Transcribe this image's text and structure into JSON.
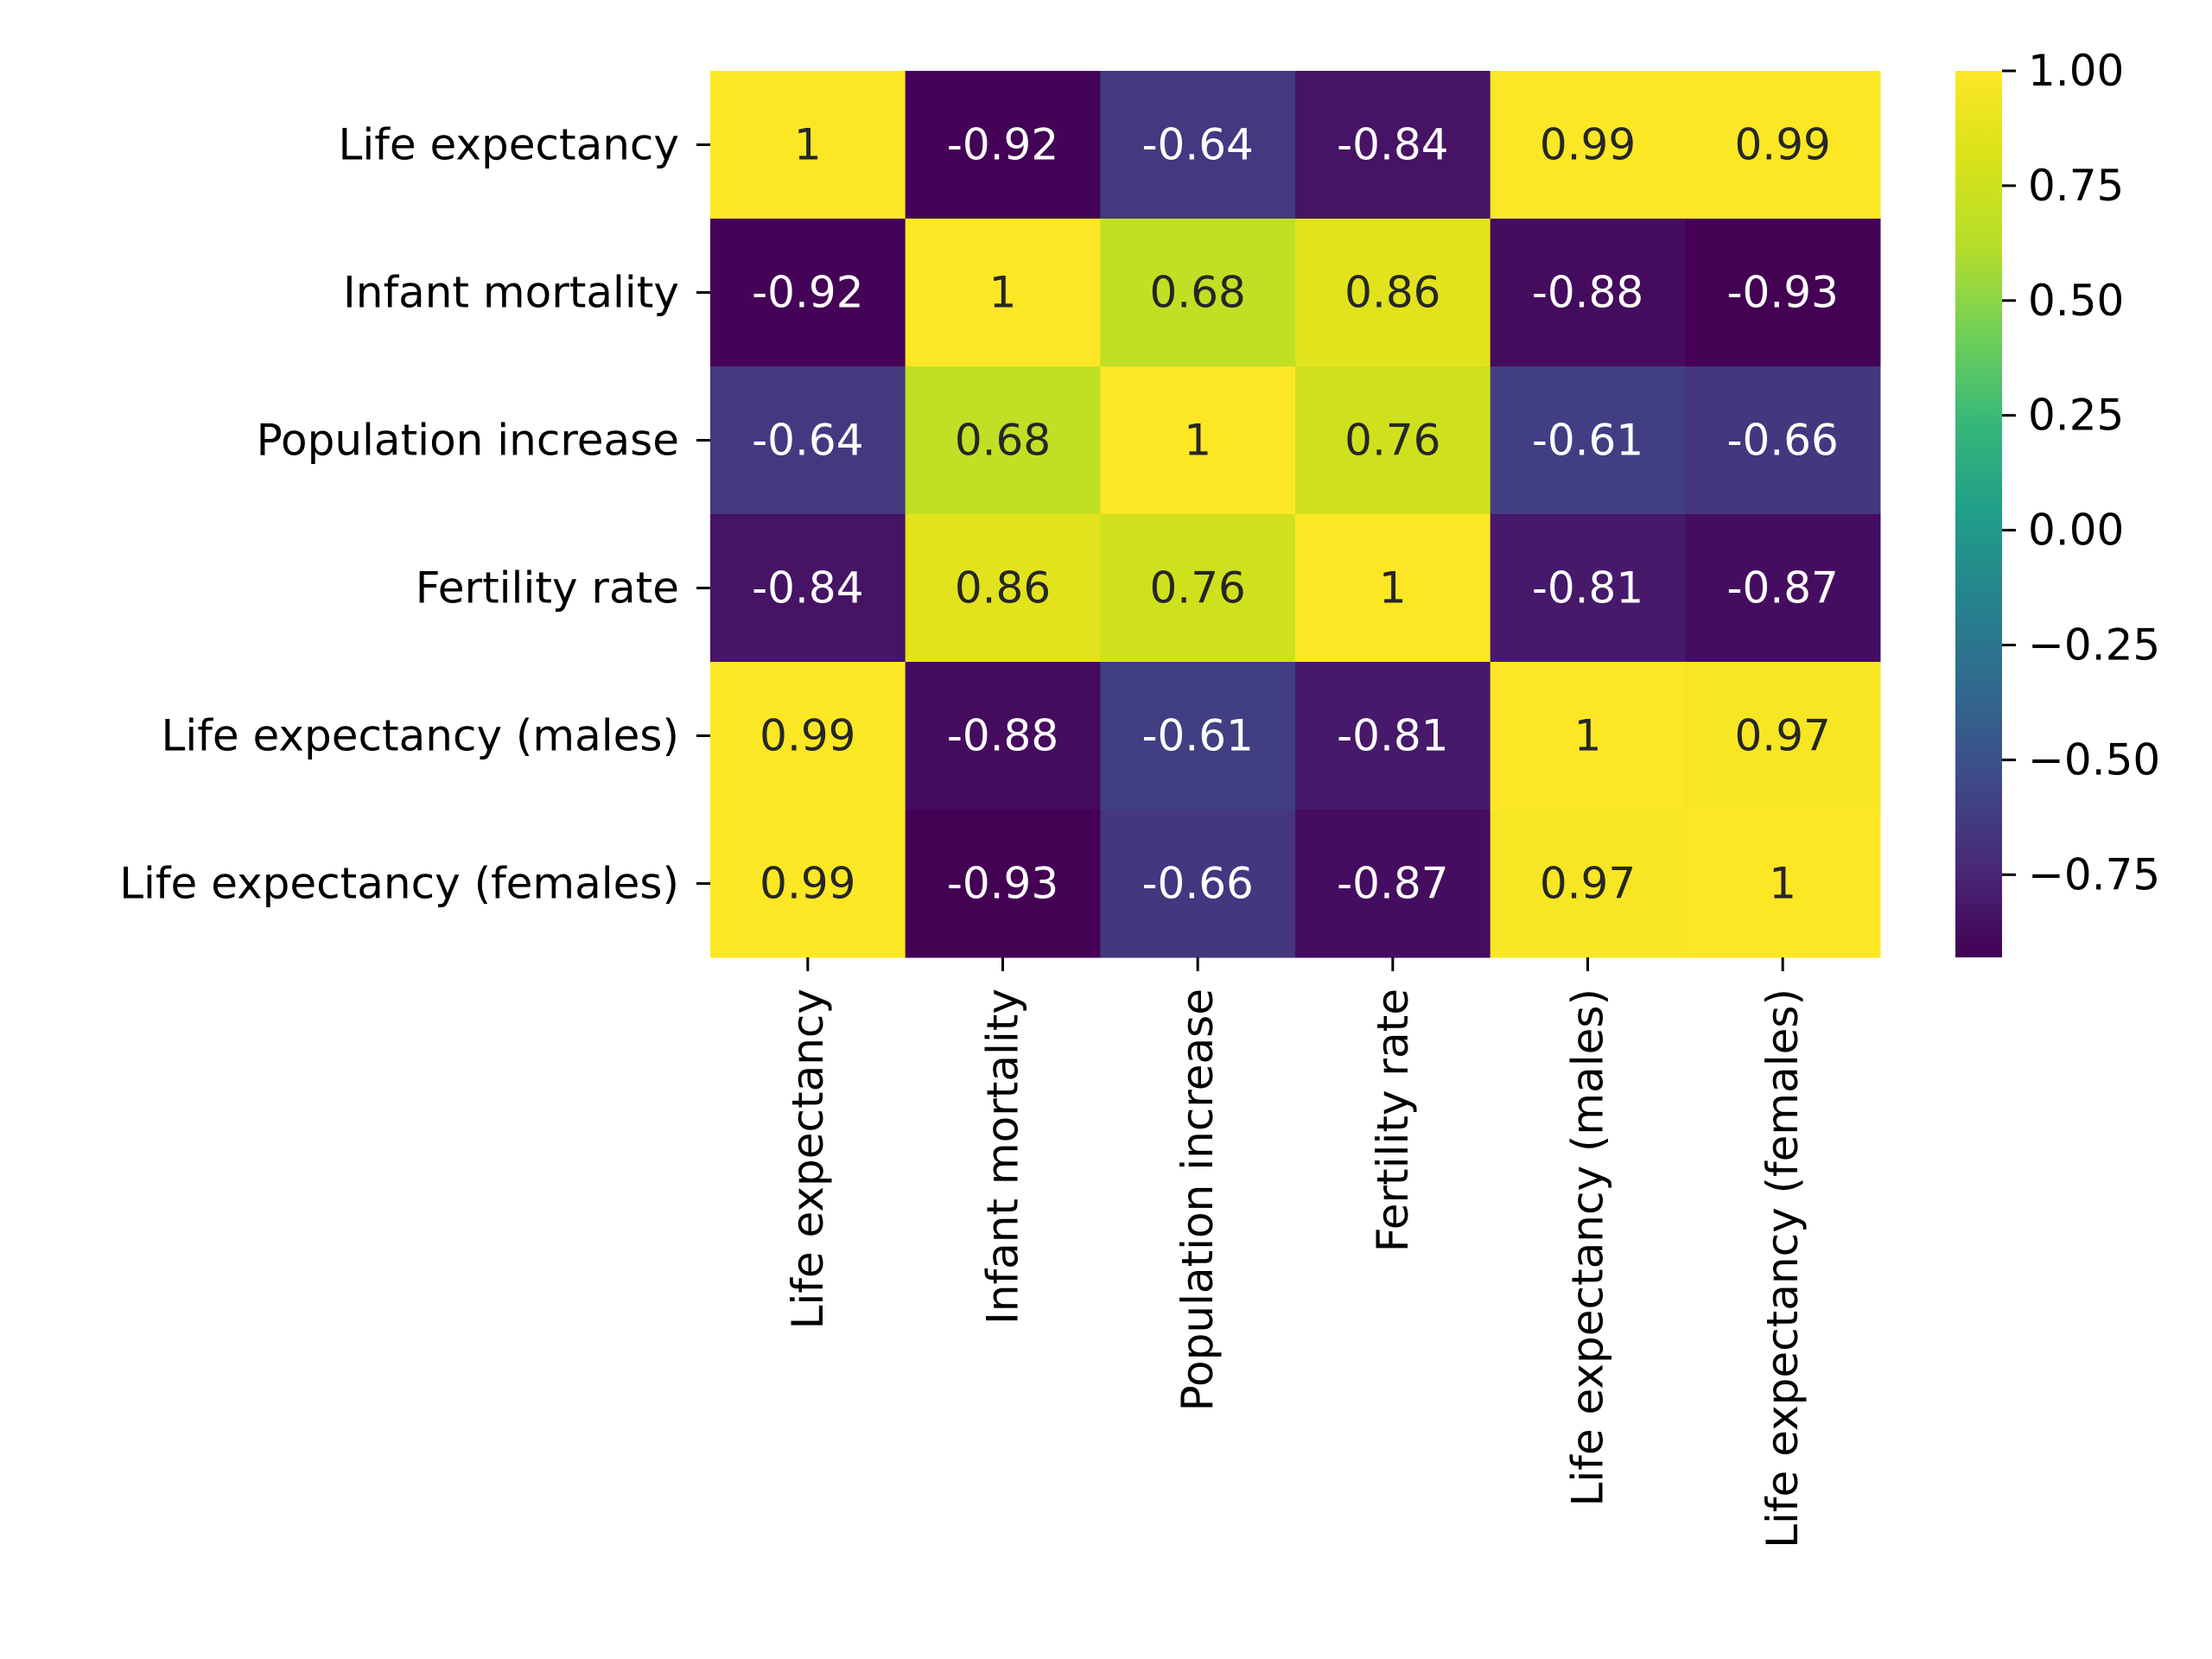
{
  "chart_data": {
    "type": "heatmap",
    "title": "",
    "xlabel": "",
    "ylabel": "",
    "rows": [
      "Life expectancy",
      "Infant mortality",
      "Population increase",
      "Fertility rate",
      "Life expectancy (males)",
      "Life expectancy (females)"
    ],
    "columns": [
      "Life expectancy",
      "Infant mortality",
      "Population increase",
      "Fertility rate",
      "Life expectancy (males)",
      "Life expectancy (females)"
    ],
    "values": [
      [
        1,
        -0.92,
        -0.64,
        -0.84,
        0.99,
        0.99
      ],
      [
        -0.92,
        1,
        0.68,
        0.86,
        -0.88,
        -0.93
      ],
      [
        -0.64,
        0.68,
        1,
        0.76,
        -0.61,
        -0.66
      ],
      [
        -0.84,
        0.86,
        0.76,
        1,
        -0.81,
        -0.87
      ],
      [
        0.99,
        -0.88,
        -0.61,
        -0.81,
        1,
        0.97
      ],
      [
        0.99,
        -0.93,
        -0.66,
        -0.87,
        0.97,
        1
      ]
    ],
    "cell_labels": [
      [
        "1",
        "-0.92",
        "-0.64",
        "-0.84",
        "0.99",
        "0.99"
      ],
      [
        "-0.92",
        "1",
        "0.68",
        "0.86",
        "-0.88",
        "-0.93"
      ],
      [
        "-0.64",
        "0.68",
        "1",
        "0.76",
        "-0.61",
        "-0.66"
      ],
      [
        "-0.84",
        "0.86",
        "0.76",
        "1",
        "-0.81",
        "-0.87"
      ],
      [
        "0.99",
        "-0.88",
        "-0.61",
        "-0.81",
        "1",
        "0.97"
      ],
      [
        "0.99",
        "-0.93",
        "-0.66",
        "-0.87",
        "0.97",
        "1"
      ]
    ],
    "colormap": "viridis",
    "vmin": -0.93,
    "vmax": 1.0,
    "colorbar_ticks": [
      1.0,
      0.75,
      0.5,
      0.25,
      0.0,
      -0.25,
      -0.5,
      -0.75
    ],
    "colorbar_tick_labels": [
      "1.00",
      "0.75",
      "0.50",
      "0.25",
      "0.00",
      "−0.25",
      "−0.50",
      "−0.75"
    ],
    "annotation_colors": {
      "on_light": "#262626",
      "on_dark": "#ffffff"
    }
  }
}
